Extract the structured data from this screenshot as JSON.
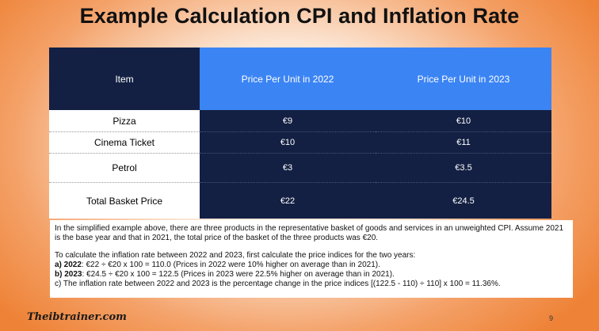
{
  "title": "Example Calculation CPI and Inflation Rate",
  "table": {
    "headers": [
      "Item",
      "Price Per Unit in 2022",
      "Price Per Unit in 2023"
    ],
    "rows": [
      {
        "item": "Pizza",
        "p2022": "€9",
        "p2023": "€10"
      },
      {
        "item": "Cinema Ticket",
        "p2022": "€10",
        "p2023": "€11"
      },
      {
        "item": "Petrol",
        "p2022": "€3",
        "p2023": "€3.5"
      },
      {
        "item": "Total Basket Price",
        "p2022": "€22",
        "p2023": "€24.5"
      }
    ]
  },
  "notes": {
    "intro": "In the simplified example above, there are three products in the representative basket of goods and services in an unweighted CPI. Assume 2021 is the base year and that in 2021, the total price of the basket of the three products was €20.",
    "lead": "To calculate the inflation rate between 2022 and 2023, first calculate the price indices for the two years:",
    "a_label": "a) 2022",
    "a_text": ": €22 ÷ €20 x 100 = 110.0 (Prices in 2022 were 10% higher on average than in 2021).",
    "b_label": "b) 2023",
    "b_text": ": €24.5 ÷ €20 x 100 = 122.5 (Prices in 2023 were 22.5% higher on average than in 2021).",
    "c_text": "c)  The inflation rate between 2022 and 2023 is the percentage change in the price indices [(122.5 - 110) ÷ 110] x 100 = 11.36%."
  },
  "footer": {
    "logo": "Theibtrainer.com",
    "page_number": "9"
  }
}
